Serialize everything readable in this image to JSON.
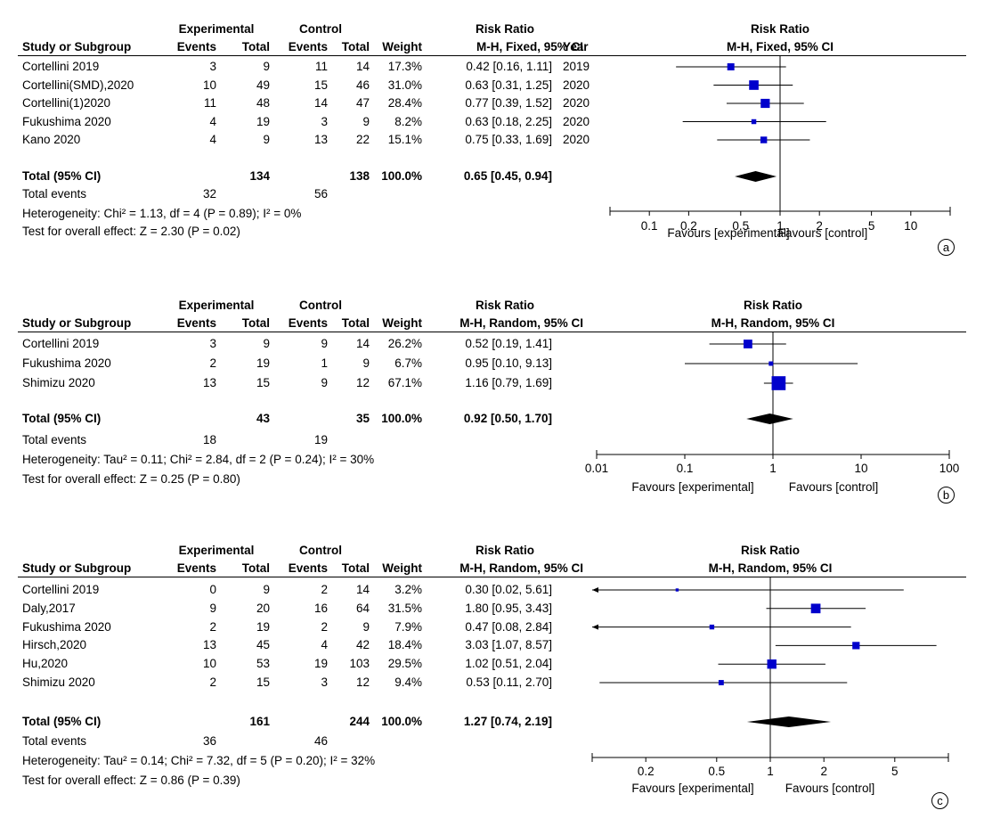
{
  "chart_data": [
    {
      "type": "forest",
      "panel_label": "a",
      "header": {
        "study_col": "Study or Subgroup",
        "exp_group": "Experimental",
        "ctrl_group": "Control",
        "events": "Events",
        "total": "Total",
        "weight": "Weight",
        "rr_title": "Risk Ratio",
        "rr_method": "M-H, Fixed, 95% CI",
        "year": "Year",
        "plot_title": "Risk Ratio",
        "plot_method": "M-H, Fixed, 95% CI"
      },
      "studies": [
        {
          "name": "Cortellini 2019",
          "exp_events": "3",
          "exp_total": "9",
          "ctrl_events": "11",
          "ctrl_total": "14",
          "weight": "17.3%",
          "ci_text": "0.42 [0.16, 1.11]",
          "year": "2019",
          "rr": 0.42,
          "lo": 0.16,
          "hi": 1.11,
          "w": 17.3
        },
        {
          "name": "Cortellini(SMD),2020",
          "exp_events": "10",
          "exp_total": "49",
          "ctrl_events": "15",
          "ctrl_total": "46",
          "weight": "31.0%",
          "ci_text": "0.63 [0.31, 1.25]",
          "year": "2020",
          "rr": 0.63,
          "lo": 0.31,
          "hi": 1.25,
          "w": 31.0
        },
        {
          "name": "Cortellini(1)2020",
          "exp_events": "11",
          "exp_total": "48",
          "ctrl_events": "14",
          "ctrl_total": "47",
          "weight": "28.4%",
          "ci_text": "0.77 [0.39, 1.52]",
          "year": "2020",
          "rr": 0.77,
          "lo": 0.39,
          "hi": 1.52,
          "w": 28.4
        },
        {
          "name": "Fukushima 2020",
          "exp_events": "4",
          "exp_total": "19",
          "ctrl_events": "3",
          "ctrl_total": "9",
          "weight": "8.2%",
          "ci_text": "0.63 [0.18, 2.25]",
          "year": "2020",
          "rr": 0.63,
          "lo": 0.18,
          "hi": 2.25,
          "w": 8.2
        },
        {
          "name": "Kano 2020",
          "exp_events": "4",
          "exp_total": "9",
          "ctrl_events": "13",
          "ctrl_total": "22",
          "weight": "15.1%",
          "ci_text": "0.75 [0.33, 1.69]",
          "year": "2020",
          "rr": 0.75,
          "lo": 0.33,
          "hi": 1.69,
          "w": 15.1
        }
      ],
      "total": {
        "label": "Total (95% CI)",
        "exp_total": "134",
        "ctrl_total": "138",
        "weight": "100.0%",
        "ci_text": "0.65 [0.45, 0.94]",
        "rr": 0.65,
        "lo": 0.45,
        "hi": 0.94
      },
      "total_events": {
        "label": "Total events",
        "exp": "32",
        "ctrl": "56"
      },
      "heterogeneity": "Heterogeneity: Chi² = 1.13, df = 4 (P = 0.89); I² = 0%",
      "overall": "Test for overall effect: Z = 2.30 (P = 0.02)",
      "axis": {
        "scale": "log",
        "min": 0.05,
        "max": 20,
        "ticks": [
          0.1,
          0.2,
          0.5,
          1,
          2,
          5,
          10
        ],
        "tick_labels": [
          "0.1",
          "0.2",
          "0.5",
          "1",
          "2",
          "5",
          "10"
        ]
      },
      "favours_left": "Favours [experimental]",
      "favours_right": "Favours [control]"
    },
    {
      "type": "forest",
      "panel_label": "b",
      "header": {
        "study_col": "Study or Subgroup",
        "exp_group": "Experimental",
        "ctrl_group": "Control",
        "events": "Events",
        "total": "Total",
        "weight": "Weight",
        "rr_title": "Risk Ratio",
        "rr_method": "M-H, Random, 95% CI",
        "year": "",
        "plot_title": "Risk Ratio",
        "plot_method": "M-H, Random, 95% CI"
      },
      "studies": [
        {
          "name": "Cortellini 2019",
          "exp_events": "3",
          "exp_total": "9",
          "ctrl_events": "9",
          "ctrl_total": "14",
          "weight": "26.2%",
          "ci_text": "0.52 [0.19, 1.41]",
          "year": "",
          "rr": 0.52,
          "lo": 0.19,
          "hi": 1.41,
          "w": 26.2
        },
        {
          "name": "Fukushima 2020",
          "exp_events": "2",
          "exp_total": "19",
          "ctrl_events": "1",
          "ctrl_total": "9",
          "weight": "6.7%",
          "ci_text": "0.95 [0.10, 9.13]",
          "year": "",
          "rr": 0.95,
          "lo": 0.1,
          "hi": 9.13,
          "w": 6.7
        },
        {
          "name": "Shimizu 2020",
          "exp_events": "13",
          "exp_total": "15",
          "ctrl_events": "9",
          "ctrl_total": "12",
          "weight": "67.1%",
          "ci_text": "1.16 [0.79, 1.69]",
          "year": "",
          "rr": 1.16,
          "lo": 0.79,
          "hi": 1.69,
          "w": 67.1
        }
      ],
      "total": {
        "label": "Total (95% CI)",
        "exp_total": "43",
        "ctrl_total": "35",
        "weight": "100.0%",
        "ci_text": "0.92 [0.50, 1.70]",
        "rr": 0.92,
        "lo": 0.5,
        "hi": 1.7
      },
      "total_events": {
        "label": "Total events",
        "exp": "18",
        "ctrl": "19"
      },
      "heterogeneity": "Heterogeneity: Tau² = 0.11; Chi² = 2.84, df = 2 (P = 0.24); I² = 30%",
      "overall": "Test for overall effect: Z = 0.25 (P = 0.80)",
      "axis": {
        "scale": "log",
        "min": 0.01,
        "max": 100,
        "ticks": [
          0.01,
          0.1,
          1,
          10,
          100
        ],
        "tick_labels": [
          "0.01",
          "0.1",
          "1",
          "10",
          "100"
        ]
      },
      "favours_left": "Favours [experimental]",
      "favours_right": "Favours [control]"
    },
    {
      "type": "forest",
      "panel_label": "c",
      "header": {
        "study_col": "Study or Subgroup",
        "exp_group": "Experimental",
        "ctrl_group": "Control",
        "events": "Events",
        "total": "Total",
        "weight": "Weight",
        "rr_title": "Risk Ratio",
        "rr_method": "M-H, Random, 95% CI",
        "year": "",
        "plot_title": "Risk Ratio",
        "plot_method": "M-H, Random, 95% CI"
      },
      "studies": [
        {
          "name": "Cortellini 2019",
          "exp_events": "0",
          "exp_total": "9",
          "ctrl_events": "2",
          "ctrl_total": "14",
          "weight": "3.2%",
          "ci_text": "0.30 [0.02, 5.61]",
          "year": "",
          "rr": 0.3,
          "lo": 0.02,
          "hi": 5.61,
          "w": 3.2
        },
        {
          "name": "Daly,2017",
          "exp_events": "9",
          "exp_total": "20",
          "ctrl_events": "16",
          "ctrl_total": "64",
          "weight": "31.5%",
          "ci_text": "1.80 [0.95, 3.43]",
          "year": "",
          "rr": 1.8,
          "lo": 0.95,
          "hi": 3.43,
          "w": 31.5
        },
        {
          "name": "Fukushima 2020",
          "exp_events": "2",
          "exp_total": "19",
          "ctrl_events": "2",
          "ctrl_total": "9",
          "weight": "7.9%",
          "ci_text": "0.47 [0.08, 2.84]",
          "year": "",
          "rr": 0.47,
          "lo": 0.08,
          "hi": 2.84,
          "w": 7.9
        },
        {
          "name": "Hirsch,2020",
          "exp_events": "13",
          "exp_total": "45",
          "ctrl_events": "4",
          "ctrl_total": "42",
          "weight": "18.4%",
          "ci_text": "3.03 [1.07, 8.57]",
          "year": "",
          "rr": 3.03,
          "lo": 1.07,
          "hi": 8.57,
          "w": 18.4
        },
        {
          "name": "Hu,2020",
          "exp_events": "10",
          "exp_total": "53",
          "ctrl_events": "19",
          "ctrl_total": "103",
          "weight": "29.5%",
          "ci_text": "1.02 [0.51, 2.04]",
          "year": "",
          "rr": 1.02,
          "lo": 0.51,
          "hi": 2.04,
          "w": 29.5
        },
        {
          "name": "Shimizu 2020",
          "exp_events": "2",
          "exp_total": "15",
          "ctrl_events": "3",
          "ctrl_total": "12",
          "weight": "9.4%",
          "ci_text": "0.53 [0.11, 2.70]",
          "year": "",
          "rr": 0.53,
          "lo": 0.11,
          "hi": 2.7,
          "w": 9.4
        }
      ],
      "total": {
        "label": "Total (95% CI)",
        "exp_total": "161",
        "ctrl_total": "244",
        "weight": "100.0%",
        "ci_text": "1.27 [0.74, 2.19]",
        "rr": 1.27,
        "lo": 0.74,
        "hi": 2.19
      },
      "total_events": {
        "label": "Total events",
        "exp": "36",
        "ctrl": "46"
      },
      "heterogeneity": "Heterogeneity: Tau² = 0.14; Chi² = 7.32, df = 5 (P = 0.20); I² = 32%",
      "overall": "Test for overall effect: Z = 0.86 (P = 0.39)",
      "axis": {
        "scale": "log",
        "min": 0.1,
        "max": 10,
        "ticks": [
          0.2,
          0.5,
          1,
          2,
          5
        ],
        "tick_labels": [
          "0.2",
          "0.5",
          "1",
          "2",
          "5"
        ]
      },
      "favours_left": "Favours [experimental]",
      "favours_right": "Favours [control]"
    }
  ],
  "colors": {
    "marker": "#0000cc",
    "diamond": "#000000",
    "line": "#000000"
  }
}
